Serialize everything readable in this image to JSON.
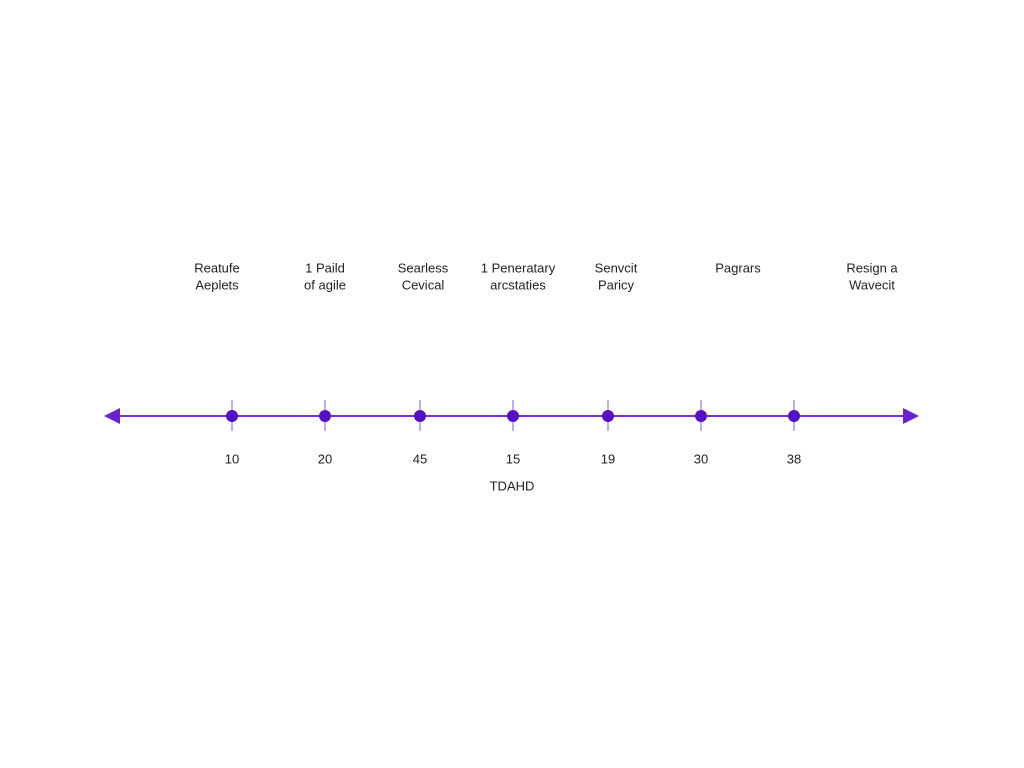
{
  "timeline": {
    "events": [
      {
        "label": [
          "Reatufe",
          "Aeplets"
        ],
        "value": 10
      },
      {
        "label": [
          "1 Paild",
          "of agile"
        ],
        "value": 20
      },
      {
        "label": [
          "Searless",
          "Cevical"
        ],
        "value": 45
      },
      {
        "label": [
          "1 Peneratary",
          "arcstaties"
        ],
        "value": 15
      },
      {
        "label": [
          "Senvcit",
          "Paricy"
        ],
        "value": 19
      },
      {
        "label": [
          "Pagrars"
        ],
        "value": 30
      },
      {
        "label": [
          "Resign a",
          "Wavecit"
        ],
        "value": 38
      }
    ],
    "axis_label": "TDAHD"
  }
}
